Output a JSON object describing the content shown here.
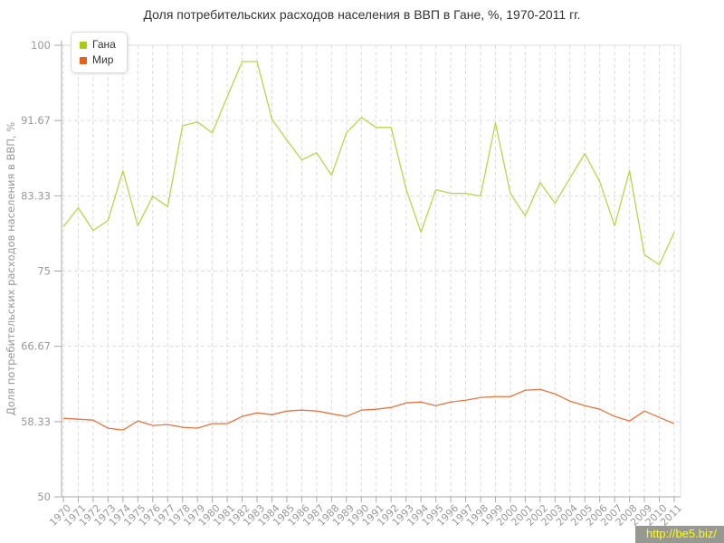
{
  "title": "Доля потребительских расходов населения в ВВП в Гане, %, 1970-2011 гг.",
  "legend": {
    "items": [
      {
        "key": "ghana",
        "label": "Гана",
        "color": "#aec913"
      },
      {
        "key": "world",
        "label": "Мир",
        "color": "#e8601c"
      }
    ]
  },
  "watermark": {
    "text": "http://be5.biz/"
  },
  "colors": {
    "grid": "#dcdcdc",
    "axis": "#a9a9a9",
    "border": "#dddddd",
    "tick_label": "#999999",
    "axis_title": "#777777",
    "title": "#333333"
  },
  "chart_data": {
    "type": "line",
    "title": "Доля потребительских расходов населения в ВВП в Гане, %, 1970-2011 гг.",
    "xlabel": "",
    "ylabel": "Доля потребительских расходов населения в ВВП, %",
    "ylim": [
      50,
      100
    ],
    "yticks": [
      100,
      91.67,
      83.33,
      75,
      66.67,
      58.33,
      50
    ],
    "ytick_labels": [
      "100",
      "91.67",
      "83.33",
      "75",
      "66.67",
      "58.33",
      "50"
    ],
    "grid": true,
    "legend_position": "top-left",
    "x": [
      1970,
      1971,
      1972,
      1973,
      1974,
      1975,
      1976,
      1977,
      1978,
      1979,
      1980,
      1981,
      1982,
      1983,
      1984,
      1985,
      1986,
      1987,
      1988,
      1989,
      1990,
      1991,
      1992,
      1993,
      1994,
      1995,
      1996,
      1997,
      1998,
      1999,
      2000,
      2001,
      2002,
      2003,
      2004,
      2005,
      2006,
      2007,
      2008,
      2009,
      2010,
      2011
    ],
    "series": [
      {
        "name": "Гана",
        "key": "ghana",
        "color": "#bcd44a",
        "values": [
          79.9,
          82.0,
          79.5,
          80.6,
          86.1,
          80.0,
          83.3,
          82.1,
          91.1,
          91.5,
          90.3,
          94.3,
          98.2,
          98.2,
          91.8,
          89.5,
          87.3,
          88.1,
          85.6,
          90.3,
          92.0,
          90.9,
          90.9,
          84.1,
          79.3,
          84.0,
          83.6,
          83.6,
          83.3,
          91.4,
          83.6,
          81.1,
          84.8,
          82.5,
          85.3,
          88.0,
          84.9,
          80.0,
          86.1,
          76.8,
          75.7,
          79.3
        ]
      },
      {
        "name": "Мир",
        "key": "world",
        "color": "#e8743f",
        "values": [
          58.7,
          58.6,
          58.5,
          57.6,
          57.4,
          58.4,
          57.9,
          58.0,
          57.7,
          57.6,
          58.1,
          58.1,
          58.9,
          59.3,
          59.1,
          59.5,
          59.6,
          59.5,
          59.2,
          58.9,
          59.6,
          59.7,
          59.9,
          60.4,
          60.5,
          60.1,
          60.5,
          60.7,
          61.0,
          61.1,
          61.1,
          61.8,
          61.9,
          61.4,
          60.6,
          60.1,
          59.7,
          58.9,
          58.4,
          59.5,
          58.8,
          58.1
        ]
      }
    ]
  }
}
